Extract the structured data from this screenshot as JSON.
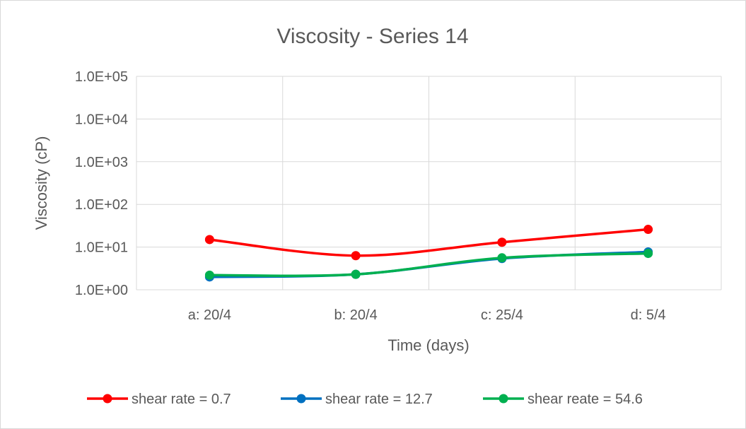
{
  "chart_data": {
    "type": "line",
    "title": "Viscosity - Series 14",
    "xlabel": "Time (days)",
    "ylabel": "Viscosity (cP)",
    "y_scale": "log",
    "ylim": [
      1,
      100000
    ],
    "y_tick_values": [
      1,
      10,
      100,
      1000,
      10000,
      100000
    ],
    "y_tick_labels": [
      "1.0E+00",
      "1.0E+01",
      "1.0E+02",
      "1.0E+03",
      "1.0E+04",
      "1.0E+05"
    ],
    "categories": [
      "a: 20/4",
      "b: 20/4",
      "c: 25/4",
      "d: 5/4"
    ],
    "grid": true,
    "legend_position": "bottom",
    "smooth_lines": true,
    "series": [
      {
        "name": "shear rate = 0.7",
        "color": "#ff0000",
        "values": [
          15,
          6.3,
          13,
          26
        ]
      },
      {
        "name": "shear rate = 12.7",
        "color": "#0070c0",
        "values": [
          2.0,
          2.3,
          5.4,
          7.7
        ]
      },
      {
        "name": "shear reate = 54.6",
        "color": "#00b050",
        "values": [
          2.2,
          2.3,
          5.6,
          7.1
        ]
      }
    ]
  }
}
